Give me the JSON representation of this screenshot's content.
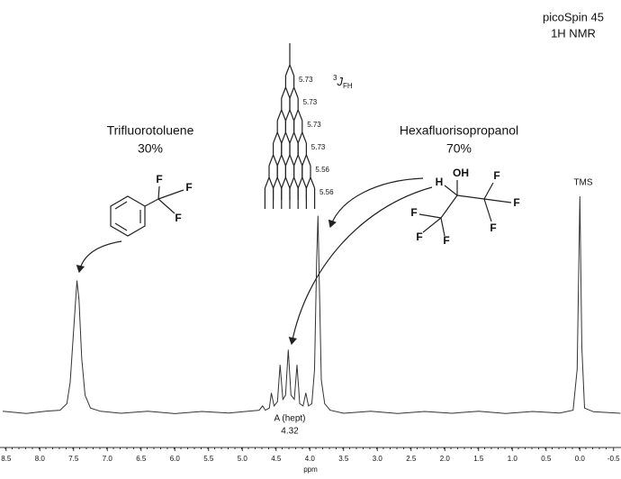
{
  "chart_data": {
    "type": "line",
    "title": "picoSpin 45",
    "subtitle": "1H NMR",
    "x_label": "ppm",
    "x": [
      8.55,
      8.2,
      7.9,
      7.7,
      7.6,
      7.55,
      7.5,
      7.45,
      7.42,
      7.38,
      7.33,
      7.25,
      7.1,
      6.8,
      6.4,
      6.0,
      5.6,
      5.2,
      4.9,
      4.75,
      4.7,
      4.66,
      4.6,
      4.57,
      4.53,
      4.48,
      4.44,
      4.4,
      4.36,
      4.32,
      4.28,
      4.23,
      4.19,
      4.15,
      4.1,
      4.06,
      4.02,
      3.97,
      3.93,
      3.9,
      3.88,
      3.86,
      3.83,
      3.78,
      3.7,
      3.5,
      3.1,
      2.7,
      2.3,
      1.9,
      1.5,
      1.1,
      0.7,
      0.3,
      0.1,
      0.04,
      0.0,
      -0.03,
      -0.07,
      -0.2,
      -0.6
    ],
    "values": [
      0.5,
      -0.5,
      0.6,
      1,
      4,
      14,
      38,
      61,
      52,
      25,
      8,
      2,
      0.5,
      -0.4,
      0.5,
      -0.6,
      0.4,
      -0.3,
      0.6,
      1,
      3,
      1,
      2,
      9,
      3,
      5,
      22,
      6,
      8,
      29,
      8,
      6,
      22,
      4,
      3,
      9,
      3,
      4,
      20,
      70,
      91,
      60,
      15,
      4,
      1,
      -0.4,
      0.5,
      -0.5,
      0.4,
      -0.4,
      0.5,
      -0.5,
      0.4,
      -0.3,
      1,
      20,
      100,
      30,
      2,
      0.3,
      -0.4
    ],
    "color": "#333333",
    "xlim": [
      8.59,
      -0.61
    ],
    "ylim": [
      -10,
      190
    ],
    "xticks": [
      8.5,
      {
        "value": 8,
        "label": "8.0"
      },
      7.5,
      {
        "value": 7,
        "label": "7.0"
      },
      6.5,
      {
        "value": 6,
        "label": "6.0"
      },
      5.5,
      {
        "value": 5,
        "label": "5.0"
      },
      4.5,
      {
        "value": 4,
        "label": "4.0"
      },
      3.5,
      {
        "value": 3,
        "label": "3.0"
      },
      2.5,
      {
        "value": 2,
        "label": "2.0"
      },
      1.5,
      {
        "value": 1,
        "label": "1.0"
      },
      0.5,
      {
        "value": 0,
        "label": "0.0"
      },
      -0.5
    ],
    "grid": false,
    "labels": [
      "Trifluorotoluene",
      "30%",
      "Hexafluorisopropanol",
      "70%",
      "TMS",
      "A (hept)",
      "4.32"
    ],
    "coupling": {
      "constants": [
        "5.73",
        "5.73",
        "5.73",
        "5.73",
        "5.56",
        "5.56"
      ],
      "superscript": "3",
      "symbol": "J",
      "subscript": "FH"
    },
    "cf3_atoms": [
      "F",
      "F",
      "F"
    ],
    "hfip_atoms": [
      "H",
      "OH",
      "F",
      "F",
      "F",
      "F",
      "F",
      "F"
    ]
  }
}
